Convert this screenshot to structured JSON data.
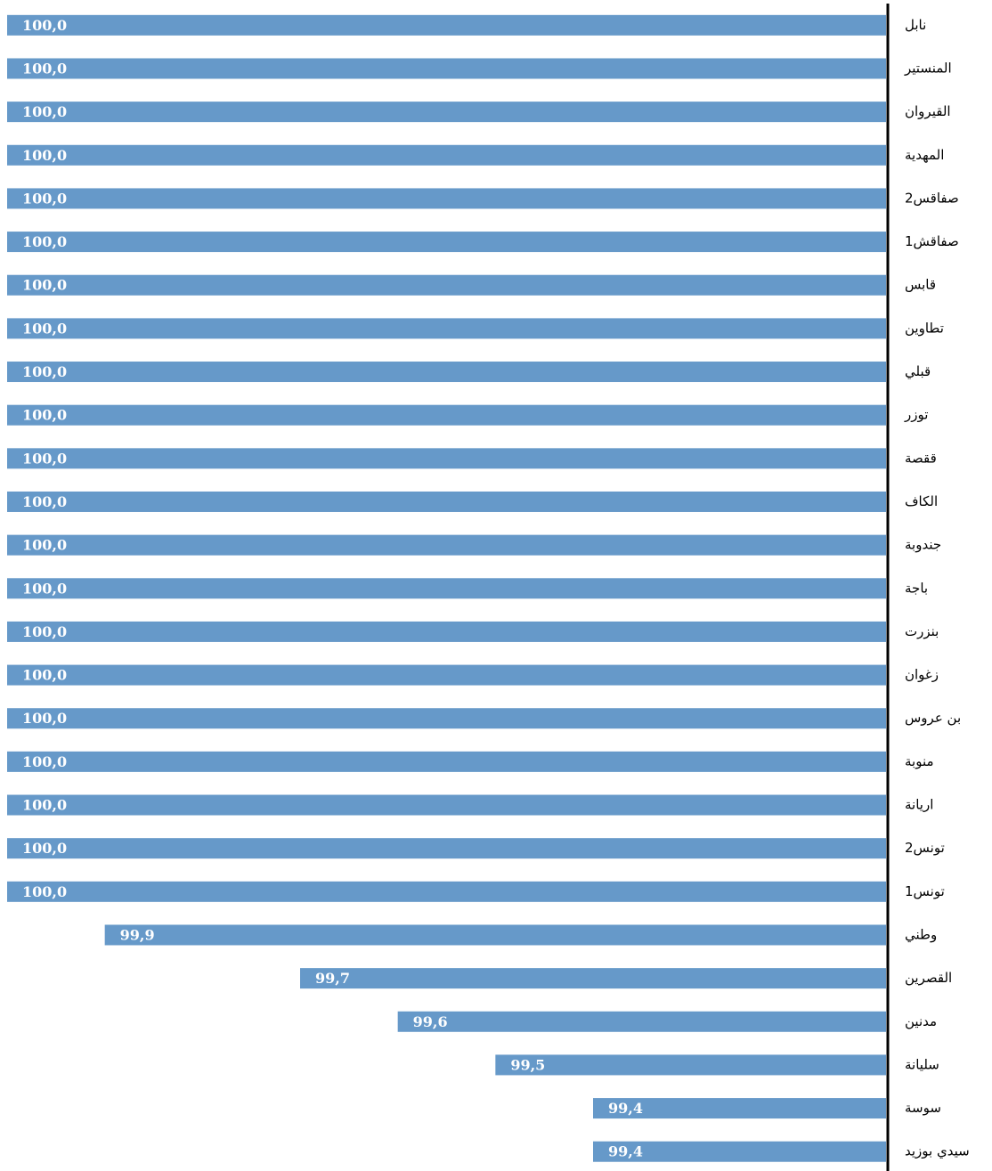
{
  "chart_data": {
    "type": "hbar",
    "categories": [
      "نابل",
      "المنستير",
      "القيروان",
      "المهدية",
      "صفاقس2",
      "صفاقش1",
      "قابس",
      "تطاوين",
      "قبلي",
      "توزر",
      "ققصة",
      "الكاف",
      "جندوبة",
      "باجة",
      "بنزرت",
      "زغوان",
      "بن عروس",
      "منوبة",
      "اريانة",
      "تونس2",
      "تونس1",
      "وطني",
      "القصرين",
      "مدنين",
      "سليانة",
      "سوسة",
      "سيدي بوزيد"
    ],
    "values": [
      100,
      100,
      100,
      100,
      100,
      100,
      100,
      100,
      100,
      100,
      100,
      100,
      100,
      100,
      100,
      100,
      100,
      100,
      100,
      100,
      100,
      99.9,
      99.7,
      99.6,
      99.5,
      99.4,
      99.4
    ],
    "value_labels": [
      "100,0",
      "100,0",
      "100,0",
      "100,0",
      "100,0",
      "100,0",
      "100,0",
      "100,0",
      "100,0",
      "100,0",
      "100,0",
      "100,0",
      "100,0",
      "100,0",
      "100,0",
      "100,0",
      "100,0",
      "100,0",
      "100,0",
      "100,0",
      "100,0",
      "99,9",
      "99,7",
      "99,6",
      "99,5",
      "99,4",
      "99,4"
    ],
    "color": "#6699c9",
    "xlim": [
      99.1,
      100
    ]
  }
}
